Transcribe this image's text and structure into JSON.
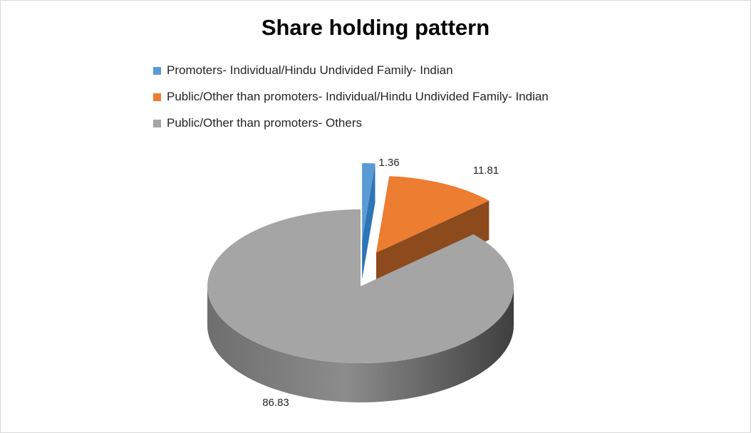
{
  "chart_data": {
    "type": "pie",
    "title": "Share holding pattern",
    "categories": [
      "Promoters- Individual/Hindu Undivided Family- Indian",
      "Public/Other than promoters- Individual/Hindu Undivided Family- Indian",
      "Public/Other than promoters- Others"
    ],
    "values": [
      1.36,
      11.81,
      86.83
    ],
    "data_labels": [
      "1.36",
      "11.81",
      "86.83"
    ],
    "colors": [
      "#5b9bd5",
      "#ed7d31",
      "#a5a5a5"
    ],
    "legend_position": "top",
    "style": "3d-exploded"
  }
}
